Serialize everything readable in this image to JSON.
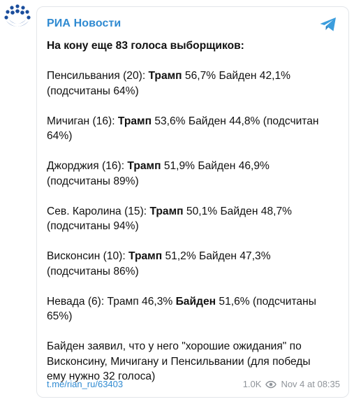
{
  "channel": {
    "name": "РИА Новости"
  },
  "post": {
    "headline": "На кону еще 83 голоса выборщиков:",
    "states": [
      {
        "l1": [
          {
            "t": "Пенсильвания (20): ",
            "b": false
          },
          {
            "t": "Трамп",
            "b": true
          },
          {
            "t": " 56,7% Байден 42,1%",
            "b": false
          }
        ],
        "l2": [
          {
            "t": "(подсчитаны 64%)",
            "b": false
          }
        ]
      },
      {
        "l1": [
          {
            "t": "Мичиган (16): ",
            "b": false
          },
          {
            "t": "Трамп",
            "b": true
          },
          {
            "t": " 53,6% Байден 44,8% (подсчитан",
            "b": false
          }
        ],
        "l2": [
          {
            "t": "64%)",
            "b": false
          }
        ]
      },
      {
        "l1": [
          {
            "t": "Джорджия (16): ",
            "b": false
          },
          {
            "t": "Трамп",
            "b": true
          },
          {
            "t": " 51,9% Байден 46,9%",
            "b": false
          }
        ],
        "l2": [
          {
            "t": "(подсчитаны 89%)",
            "b": false
          }
        ]
      },
      {
        "l1": [
          {
            "t": "Сев. Каролина (15): ",
            "b": false
          },
          {
            "t": "Трамп",
            "b": true
          },
          {
            "t": " 50,1% Байден 48,7%",
            "b": false
          }
        ],
        "l2": [
          {
            "t": "(подсчитаны 94%)",
            "b": false
          }
        ]
      },
      {
        "l1": [
          {
            "t": "Висконсин (10): ",
            "b": false
          },
          {
            "t": "Трамп",
            "b": true
          },
          {
            "t": " 51,2% Байден 47,3%",
            "b": false
          }
        ],
        "l2": [
          {
            "t": "(подсчитаны 86%)",
            "b": false
          }
        ]
      },
      {
        "l1": [
          {
            "t": "Невада (6): Трамп 46,3% ",
            "b": false
          },
          {
            "t": "Байден",
            "b": true
          },
          {
            "t": " 51,6% (подсчитаны",
            "b": false
          }
        ],
        "l2": [
          {
            "t": "65%)",
            "b": false
          }
        ]
      }
    ],
    "closing": [
      "Байден заявил, что у него \"хорошие ожидания\" по",
      "Висконсину, Мичигану и Пенсильвании (для победы",
      "ему нужно 32 голоса)"
    ]
  },
  "footer": {
    "link": "t.me/rian_ru/63403",
    "views": "1.0K",
    "date": "Nov 4 at 08:35"
  },
  "colors": {
    "accent": "#2f8ad1",
    "logo_blue": "#1a4d9c",
    "muted": "#8f949a"
  },
  "icons": [
    "ria-logo-icon",
    "telegram-icon",
    "eye-icon"
  ]
}
